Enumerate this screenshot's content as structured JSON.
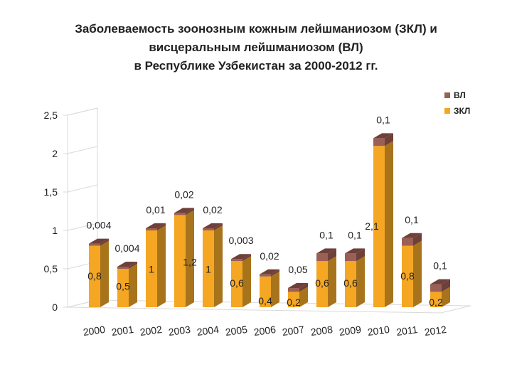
{
  "title_lines": [
    "Заболеваемость зоонозным кожным лейшманиозом (ЗКЛ) и",
    "висцеральным лейшманиозом (ВЛ)",
    "в Республике Узбекистан за 2000-2012 гг."
  ],
  "colors": {
    "zkl": "#f5a623",
    "zkl_side": "#a8741b",
    "vl": "#9b6055",
    "vl_side": "#6e4039",
    "wall": "#d9d9d9"
  },
  "chart_data": {
    "type": "bar",
    "stacked": true,
    "three_d": true,
    "title": "Заболеваемость зоонозным кожным лейшманиозом (ЗКЛ) и висцеральным лейшманиозом (ВЛ) в Республике Узбекистан за 2000-2012 гг.",
    "categories": [
      "2000",
      "2001",
      "2002",
      "2003",
      "2004",
      "2005",
      "2006",
      "2007",
      "2008",
      "2009",
      "2010",
      "2011",
      "2012"
    ],
    "series": [
      {
        "name": "ЗКЛ",
        "values": [
          0.8,
          0.5,
          1,
          1.2,
          1,
          0.6,
          0.4,
          0.2,
          0.6,
          0.6,
          2.1,
          0.8,
          0.2
        ],
        "labels": [
          "0,8",
          "0,5",
          "1",
          "1,2",
          "1",
          "0,6",
          "0,4",
          "0,2",
          "0,6",
          "0,6",
          "2,1",
          "0,8",
          "0,2"
        ]
      },
      {
        "name": "ВЛ",
        "values": [
          0.004,
          0.004,
          0.01,
          0.02,
          0.02,
          0.003,
          0.02,
          0.05,
          0.1,
          0.1,
          0.1,
          0.1,
          0.1
        ],
        "labels": [
          "0,004",
          "0,004",
          "0,01",
          "0,02",
          "0,02",
          "0,003",
          "0,02",
          "0,05",
          "0,1",
          "0,1",
          "0,1",
          "0,1",
          "0,1"
        ]
      }
    ],
    "ylim": [
      0,
      2.5
    ],
    "yticks": [
      0,
      0.5,
      1,
      1.5,
      2,
      2.5
    ],
    "ytick_labels": [
      "0",
      "0,5",
      "1",
      "1,5",
      "2",
      "2,5"
    ],
    "xlabel": "",
    "ylabel": "",
    "legend": {
      "position": "top-right",
      "entries": [
        "ВЛ",
        "ЗКЛ"
      ]
    },
    "grid": false
  }
}
